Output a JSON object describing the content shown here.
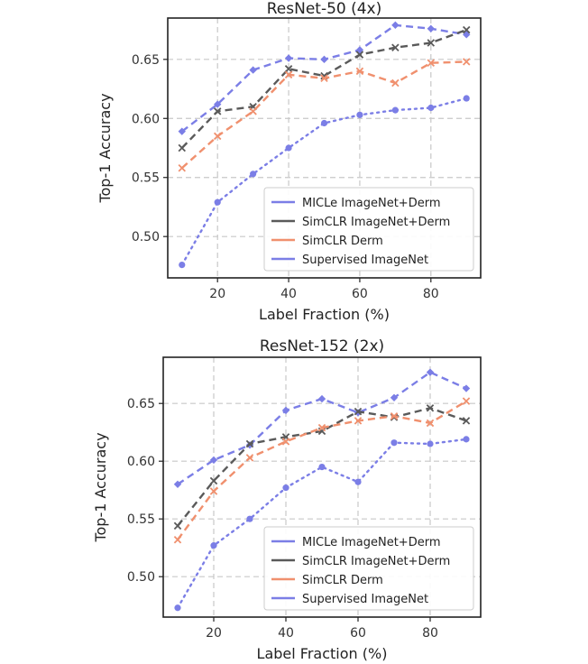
{
  "colors": {
    "micle": "#7b7ee6",
    "simclr_imagenet_derm": "#5a5a5a",
    "simclr_derm": "#f0906e",
    "supervised": "#7b7ee6",
    "grid": "#c8c8c8",
    "frame": "#222222"
  },
  "chart_data": [
    {
      "type": "line",
      "title": "ResNet-50 (4x)",
      "xlabel": "Label Fraction (%)",
      "ylabel": "Top-1 Accuracy",
      "xlim": [
        6,
        94
      ],
      "ylim": [
        0.465,
        0.685
      ],
      "xticks": [
        20,
        40,
        60,
        80
      ],
      "yticks": [
        0.5,
        0.55,
        0.6,
        0.65
      ],
      "grid": true,
      "legend_position": "lower-right",
      "x": [
        10,
        20,
        30,
        40,
        50,
        60,
        70,
        80,
        90
      ],
      "series": [
        {
          "name": "MICLe ImageNet+Derm",
          "style": "dashed",
          "marker": "diamond",
          "color_key": "micle",
          "values": [
            0.589,
            0.612,
            0.641,
            0.651,
            0.65,
            0.658,
            0.679,
            0.676,
            0.671
          ]
        },
        {
          "name": "SimCLR ImageNet+Derm",
          "style": "dashed",
          "marker": "x",
          "color_key": "simclr_imagenet_derm",
          "values": [
            0.575,
            0.606,
            0.61,
            0.642,
            0.636,
            0.654,
            0.66,
            0.664,
            0.675
          ]
        },
        {
          "name": "SimCLR Derm",
          "style": "dashed",
          "marker": "x",
          "color_key": "simclr_derm",
          "values": [
            0.558,
            0.585,
            0.606,
            0.637,
            0.634,
            0.64,
            0.63,
            0.647,
            0.648
          ]
        },
        {
          "name": "Supervised ImageNet",
          "style": "dotted",
          "marker": "circle",
          "color_key": "supervised",
          "values": [
            0.476,
            0.529,
            0.553,
            0.575,
            0.596,
            0.603,
            0.607,
            0.609,
            0.617
          ]
        }
      ]
    },
    {
      "type": "line",
      "title": "ResNet-152 (2x)",
      "xlabel": "Label Fraction (%)",
      "ylabel": "Top-1 Accuracy",
      "xlim": [
        6,
        94
      ],
      "ylim": [
        0.465,
        0.69
      ],
      "xticks": [
        20,
        40,
        60,
        80
      ],
      "yticks": [
        0.5,
        0.55,
        0.6,
        0.65
      ],
      "grid": true,
      "legend_position": "lower-right",
      "x": [
        10,
        20,
        30,
        40,
        50,
        60,
        70,
        80,
        90
      ],
      "series": [
        {
          "name": "MICLe ImageNet+Derm",
          "style": "dashed",
          "marker": "diamond",
          "color_key": "micle",
          "values": [
            0.58,
            0.601,
            0.614,
            0.644,
            0.654,
            0.642,
            0.655,
            0.677,
            0.663
          ]
        },
        {
          "name": "SimCLR ImageNet+Derm",
          "style": "dashed",
          "marker": "x",
          "color_key": "simclr_imagenet_derm",
          "values": [
            0.544,
            0.583,
            0.615,
            0.621,
            0.626,
            0.643,
            0.638,
            0.646,
            0.635
          ]
        },
        {
          "name": "SimCLR Derm",
          "style": "dashed",
          "marker": "x",
          "color_key": "simclr_derm",
          "values": [
            0.532,
            0.574,
            0.603,
            0.617,
            0.629,
            0.635,
            0.639,
            0.633,
            0.652
          ]
        },
        {
          "name": "Supervised ImageNet",
          "style": "dotted",
          "marker": "circle",
          "color_key": "supervised",
          "values": [
            0.473,
            0.527,
            0.55,
            0.577,
            0.595,
            0.582,
            0.616,
            0.615,
            0.619
          ]
        }
      ]
    }
  ]
}
